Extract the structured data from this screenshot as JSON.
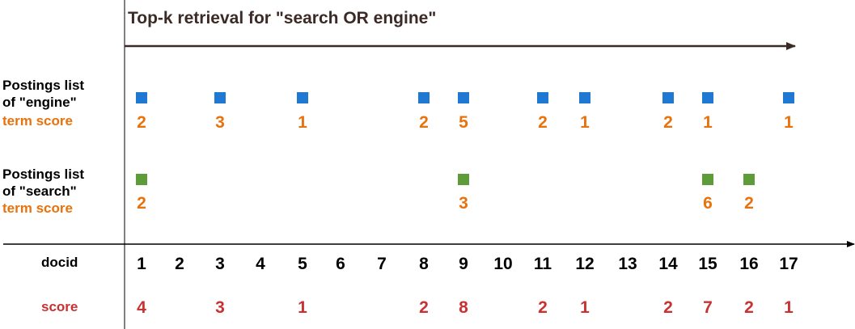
{
  "title": "Top-k retrieval for \"search OR engine\"",
  "rows": {
    "engine": {
      "line1": "Postings list",
      "line2": "of \"engine\"",
      "term_score_label": "term score"
    },
    "search": {
      "line1": "Postings list",
      "line2": "of \"search\"",
      "term_score_label": "term score"
    },
    "docid_label": "docid",
    "score_label": "score"
  },
  "colors": {
    "engine_marker": "#1f78d1",
    "search_marker": "#5e9c3a",
    "term_score": "#e8720c",
    "score": "#c83232"
  },
  "docids": [
    "1",
    "2",
    "3",
    "4",
    "5",
    "6",
    "7",
    "8",
    "9",
    "10",
    "11",
    "12",
    "13",
    "14",
    "15",
    "16",
    "17"
  ],
  "engine_postings": [
    {
      "docid": 1,
      "score": "2"
    },
    {
      "docid": 3,
      "score": "3"
    },
    {
      "docid": 5,
      "score": "1"
    },
    {
      "docid": 8,
      "score": "2"
    },
    {
      "docid": 9,
      "score": "5"
    },
    {
      "docid": 11,
      "score": "2"
    },
    {
      "docid": 12,
      "score": "1"
    },
    {
      "docid": 14,
      "score": "2"
    },
    {
      "docid": 15,
      "score": "1"
    },
    {
      "docid": 17,
      "score": "1"
    }
  ],
  "search_postings": [
    {
      "docid": 1,
      "score": "2"
    },
    {
      "docid": 9,
      "score": "3"
    },
    {
      "docid": 15,
      "score": "6"
    },
    {
      "docid": 16,
      "score": "2"
    }
  ],
  "scores": [
    {
      "docid": 1,
      "score": "4"
    },
    {
      "docid": 3,
      "score": "3"
    },
    {
      "docid": 5,
      "score": "1"
    },
    {
      "docid": 8,
      "score": "2"
    },
    {
      "docid": 9,
      "score": "8"
    },
    {
      "docid": 11,
      "score": "2"
    },
    {
      "docid": 12,
      "score": "1"
    },
    {
      "docid": 14,
      "score": "2"
    },
    {
      "docid": 15,
      "score": "7"
    },
    {
      "docid": 16,
      "score": "2"
    },
    {
      "docid": 17,
      "score": "1"
    }
  ]
}
